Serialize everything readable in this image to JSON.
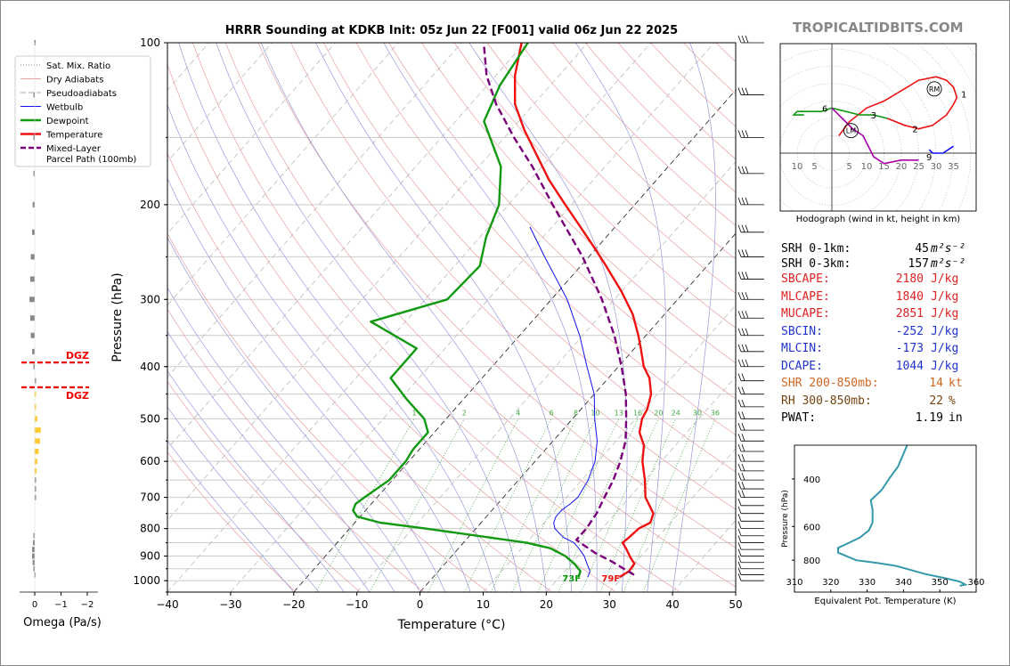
{
  "title": "HRRR Sounding at KDKB Init: 05z Jun 22 [F001] valid 06z Jun 22 2025",
  "watermark": "TROPICALTIDBITS.COM",
  "chart_data": [
    {
      "type": "line",
      "name": "skewt",
      "xlabel": "Temperature (°C)",
      "ylabel": "Pressure (hPa)",
      "xlim": [
        -40,
        50
      ],
      "ylim": [
        1050,
        100
      ],
      "log_y": true,
      "skew": true,
      "grid": true,
      "xticks": [
        -40,
        -30,
        -20,
        -10,
        0,
        10,
        20,
        30,
        40,
        50
      ],
      "xtick_labels": [
        "−40",
        "−30",
        "−20",
        "−10",
        "0",
        "10",
        "20",
        "30",
        "40",
        "50"
      ],
      "yticks": [
        100,
        200,
        300,
        400,
        500,
        600,
        700,
        800,
        900,
        1000
      ],
      "mixing_ratio_labels": [
        "1",
        "2",
        "4",
        "6",
        "8",
        "10",
        "13",
        "16",
        "20",
        "24",
        "30",
        "36"
      ],
      "legend": {
        "placement": "top-left",
        "entries": [
          "Sat. Mix. Ratio",
          "Dry Adiabats",
          "Pseudoadiabats",
          "Wetbulb",
          "Dewpoint",
          "Temperature",
          "Mixed-Layer\nParcel Path (100mb)"
        ]
      },
      "series": [
        {
          "name": "Temperature",
          "color": "#ee1111",
          "p": [
            985,
            960,
            930,
            900,
            870,
            850,
            830,
            800,
            780,
            750,
            700,
            650,
            600,
            560,
            530,
            500,
            480,
            450,
            420,
            400,
            370,
            350,
            320,
            290,
            260,
            240,
            220,
            200,
            180,
            160,
            145,
            130,
            115,
            100
          ],
          "t": [
            29.5,
            30.2,
            30.0,
            28.2,
            26.5,
            25.2,
            25.5,
            25.8,
            26.8,
            26.0,
            22.5,
            20.0,
            17.0,
            15.0,
            12.5,
            11.0,
            10.5,
            9.0,
            6.5,
            4.0,
            1.0,
            -1.2,
            -5.0,
            -10.0,
            -16.0,
            -20.5,
            -25.5,
            -31.0,
            -37.0,
            -43.0,
            -48.0,
            -53.0,
            -57.0,
            -60.5
          ]
        },
        {
          "name": "Dewpoint",
          "color": "#119911",
          "p": [
            985,
            960,
            930,
            900,
            870,
            850,
            830,
            800,
            780,
            760,
            740,
            720,
            700,
            650,
            600,
            570,
            530,
            500,
            460,
            420,
            400,
            370,
            330,
            300,
            260,
            230,
            200,
            170,
            140,
            120,
            100
          ],
          "t": [
            23.0,
            22.5,
            20.5,
            18.0,
            14.5,
            10.0,
            3.0,
            -8.0,
            -16.0,
            -20.5,
            -22.0,
            -22.5,
            -22.0,
            -20.5,
            -20.5,
            -21.0,
            -21.0,
            -23.5,
            -29.0,
            -34.5,
            -34.5,
            -34.5,
            -45.5,
            -36.5,
            -36.0,
            -39.0,
            -41.5,
            -46.5,
            -55.5,
            -58.0,
            -59.5
          ]
        },
        {
          "name": "Wetbulb",
          "color": "#1111ee",
          "p": [
            985,
            960,
            930,
            900,
            870,
            850,
            830,
            800,
            780,
            760,
            740,
            720,
            700,
            650,
            600,
            550,
            500,
            450,
            400,
            350,
            300,
            250,
            220
          ],
          "t": [
            24.5,
            24.0,
            22.5,
            21.0,
            19.0,
            17.5,
            15.0,
            12.5,
            11.5,
            11.0,
            11.0,
            11.5,
            11.8,
            11.0,
            9.5,
            7.0,
            3.5,
            0.0,
            -5.0,
            -10.5,
            -17.5,
            -27.0,
            -33.5
          ]
        },
        {
          "name": "Mixed-Layer Parcel Path (100mb)",
          "color": "#7a007a",
          "dashed": true,
          "p": [
            975,
            950,
            920,
            890,
            860,
            840,
            800,
            750,
            700,
            650,
            600,
            550,
            500,
            450,
            400,
            350,
            300,
            250,
            200,
            170,
            150,
            130,
            115,
            100
          ],
          "t": [
            31.5,
            29.0,
            26.0,
            22.5,
            19.5,
            17.5,
            17.5,
            17.0,
            16.0,
            15.0,
            13.5,
            11.5,
            8.5,
            5.0,
            0.5,
            -5.0,
            -12.0,
            -21.0,
            -33.0,
            -41.5,
            -48.5,
            -56.0,
            -61.5,
            -66.5
          ]
        }
      ],
      "annotations": [
        "73F",
        "79F"
      ]
    },
    {
      "type": "bar",
      "name": "omega",
      "xlabel": "Omega (Pa/s)",
      "xlim": [
        0.5,
        -2.5
      ],
      "xticks": [
        0,
        -1,
        -2
      ],
      "xtick_labels": [
        "0",
        "−1",
        "−2"
      ],
      "p": [
        975,
        950,
        925,
        900,
        875,
        850,
        825,
        700,
        675,
        650,
        625,
        600,
        575,
        550,
        525,
        500,
        475,
        450,
        425,
        400,
        375,
        350,
        325,
        300,
        275,
        250,
        225,
        200,
        175,
        150,
        125,
        100
      ],
      "values": [
        0.02,
        0.05,
        0.08,
        0.1,
        0.1,
        0.07,
        0.05,
        -0.02,
        -0.03,
        -0.05,
        -0.07,
        -0.1,
        -0.15,
        -0.2,
        -0.23,
        -0.1,
        -0.05,
        -0.03,
        -0.02,
        0.05,
        0.1,
        0.15,
        0.17,
        0.2,
        0.17,
        0.15,
        0.1,
        0.08,
        0.05,
        0.05,
        0.05,
        0.02
      ],
      "dgz_label": "DGZ",
      "dgz_pressures": [
        393,
        437
      ]
    },
    {
      "type": "line",
      "name": "hodograph",
      "caption": "Hodograph (wind in kt, height in km)",
      "ring_labels": [
        "10",
        "5",
        "5",
        "10",
        "15",
        "20",
        "25",
        "30",
        "35"
      ],
      "height_labels": [
        "1",
        "2",
        "3",
        "6",
        "9"
      ],
      "markers": [
        "RM",
        "LM"
      ],
      "segments": [
        {
          "color": "#ee1111",
          "points": [
            [
              2,
              5
            ],
            [
              5,
              9
            ],
            [
              10,
              13
            ],
            [
              15,
              15
            ],
            [
              20,
              18
            ],
            [
              25,
              21
            ],
            [
              30,
              22
            ],
            [
              33,
              21
            ],
            [
              35,
              19
            ],
            [
              36,
              16
            ],
            [
              35,
              14
            ],
            [
              33,
              11
            ],
            [
              29,
              8
            ],
            [
              25,
              7
            ],
            [
              21,
              8
            ],
            [
              16,
              10
            ]
          ]
        },
        {
          "color": "#119911",
          "points": [
            [
              16,
              10
            ],
            [
              12,
              11
            ],
            [
              8,
              11
            ],
            [
              4,
              12
            ],
            [
              0,
              13
            ],
            [
              -3,
              12
            ],
            [
              -7,
              12
            ],
            [
              -10,
              12
            ],
            [
              -11,
              11
            ],
            [
              -8,
              11
            ]
          ]
        },
        {
          "color": "#aa00aa",
          "points": [
            [
              0,
              13
            ],
            [
              3,
              10
            ],
            [
              6,
              7
            ],
            [
              9,
              5
            ],
            [
              12,
              -1
            ],
            [
              15,
              -3
            ],
            [
              20,
              -2
            ],
            [
              25,
              -2
            ]
          ]
        },
        {
          "color": "#1111ee",
          "points": [
            [
              28,
              1
            ],
            [
              29,
              0
            ],
            [
              32,
              0
            ],
            [
              35,
              2
            ]
          ]
        }
      ],
      "rm": [
        29.5,
        18.5
      ],
      "lm": [
        5.5,
        6.5
      ]
    },
    {
      "type": "line",
      "name": "theta-e",
      "xlabel": "Equivalent Pot. Temperature (K)",
      "ylabel": "Pressure (hPa)",
      "xlim": [
        310,
        360
      ],
      "xticks": [
        310,
        320,
        330,
        340,
        350,
        360
      ],
      "yticks": [
        400,
        600,
        800
      ],
      "ylim": [
        1050,
        300
      ],
      "series": [
        {
          "name": "theta-e",
          "color": "#3399aa",
          "p": [
            995,
            985,
            960,
            930,
            900,
            870,
            840,
            820,
            800,
            770,
            750,
            720,
            700,
            660,
            620,
            580,
            520,
            480,
            440,
            400,
            360,
            300
          ],
          "values": [
            355.5,
            357.0,
            355.5,
            351.0,
            346.0,
            342.0,
            338.0,
            333.0,
            327.0,
            324.0,
            322.0,
            322.0,
            324.0,
            328.0,
            330.5,
            331.5,
            331.5,
            331.0,
            334.0,
            336.0,
            338.5,
            341.0
          ]
        }
      ]
    }
  ],
  "indices": [
    {
      "label": "SRH 0-1km:",
      "value": "45",
      "unit": "m²s⁻²",
      "color": "#000000"
    },
    {
      "label": "SRH 0-3km:",
      "value": "157",
      "unit": "m²s⁻²",
      "color": "#000000"
    },
    {
      "label": "SBCAPE:",
      "value": "2180",
      "unit": "J/kg",
      "color": "#dd2222"
    },
    {
      "label": "MLCAPE:",
      "value": "1840",
      "unit": "J/kg",
      "color": "#dd2222"
    },
    {
      "label": "MUCAPE:",
      "value": "2851",
      "unit": "J/kg",
      "color": "#dd2222"
    },
    {
      "label": "SBCIN:",
      "value": "-252",
      "unit": "J/kg",
      "color": "#2233cc"
    },
    {
      "label": "MLCIN:",
      "value": "-173",
      "unit": "J/kg",
      "color": "#2233cc"
    },
    {
      "label": "DCAPE:",
      "value": "1044",
      "unit": "J/kg",
      "color": "#2233cc"
    },
    {
      "label": "SHR 200-850mb:",
      "value": "14",
      "unit": "kt",
      "color": "#cc6622"
    },
    {
      "label": "RH 300-850mb:",
      "value": "22",
      "unit": "%",
      "color": "#774411"
    },
    {
      "label": "PWAT:",
      "value": "1.19",
      "unit": "in",
      "color": "#000000"
    }
  ]
}
